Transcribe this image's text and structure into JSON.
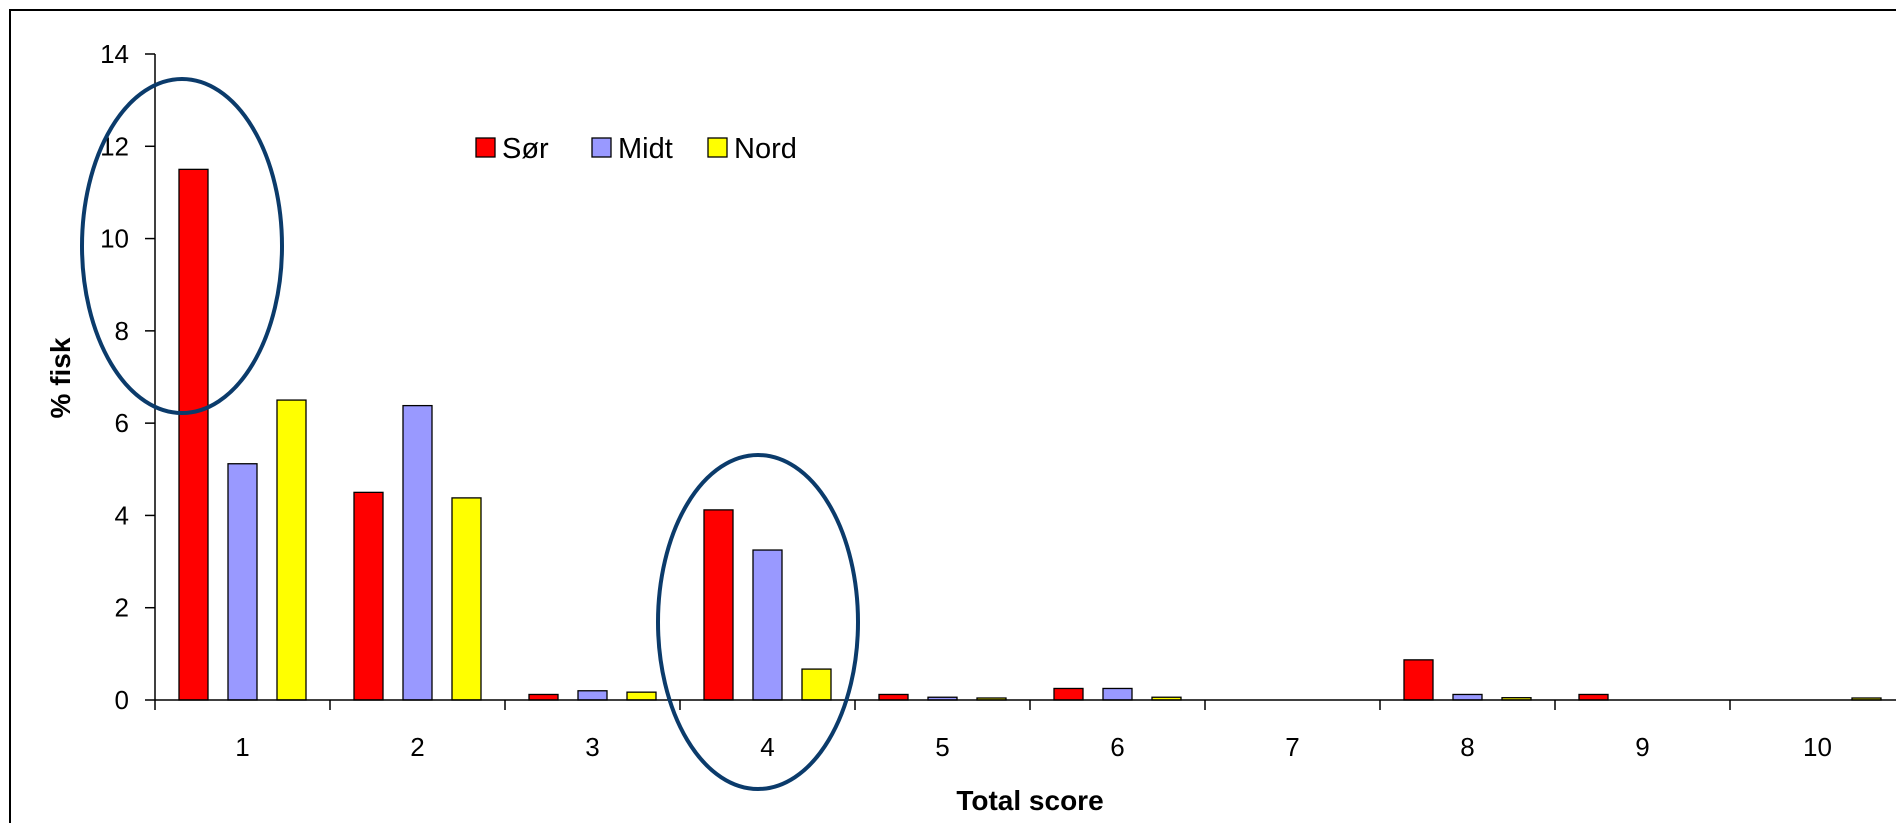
{
  "chart_data": {
    "type": "bar",
    "title": "",
    "xlabel": "Total score",
    "ylabel": "% fisk",
    "categories": [
      "1",
      "2",
      "3",
      "4",
      "5",
      "6",
      "7",
      "8",
      "9",
      "10"
    ],
    "ylim": [
      0,
      14
    ],
    "yticks": [
      "0",
      "2",
      "4",
      "6",
      "8",
      "10",
      "12",
      "14"
    ],
    "grid": false,
    "legend_position": "top-center",
    "series": [
      {
        "name": "Sør",
        "color": "#ff0000",
        "values": [
          11.5,
          4.5,
          0.12,
          4.12,
          0.12,
          0.25,
          0,
          0.87,
          0.12,
          0
        ]
      },
      {
        "name": "Midt",
        "color": "#9999ff",
        "values": [
          5.12,
          6.38,
          0.2,
          3.25,
          0.06,
          0.25,
          0,
          0.12,
          0,
          0
        ]
      },
      {
        "name": "Nord",
        "color": "#ffff00",
        "values": [
          6.5,
          4.38,
          0.17,
          0.67,
          0.02,
          0.06,
          0,
          0.05,
          0,
          0.02
        ]
      }
    ],
    "highlight_color": "#0b3b6b",
    "highlighted_categories": [
      "1",
      "4"
    ]
  }
}
